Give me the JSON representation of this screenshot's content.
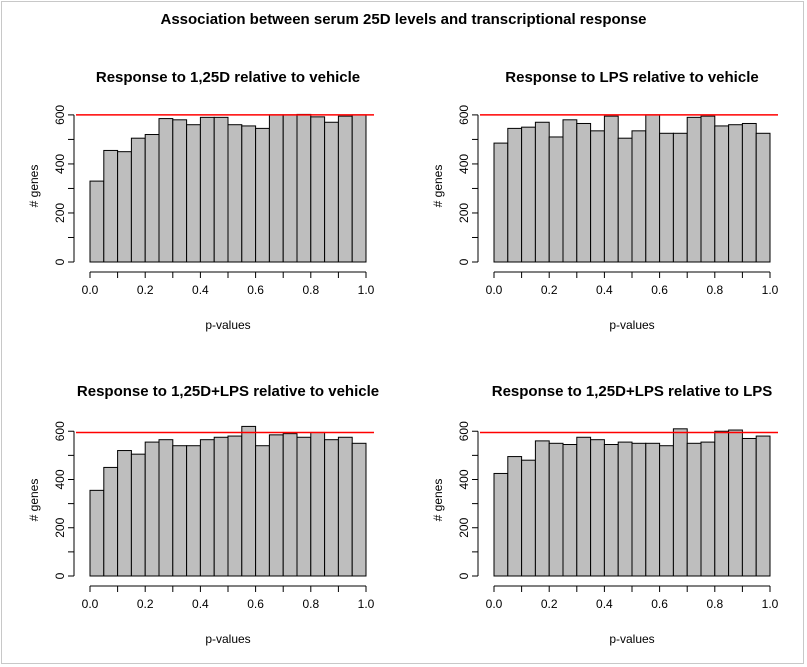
{
  "figure": {
    "title": "Association between serum 25D levels and transcriptional response"
  },
  "chart_data": [
    {
      "type": "bar",
      "title": "Response to 1,25D relative to vehicle",
      "xlabel": "p-values",
      "ylabel": "# genes",
      "bin_edges": [
        0.0,
        0.05,
        0.1,
        0.15,
        0.2,
        0.25,
        0.3,
        0.35,
        0.4,
        0.45,
        0.5,
        0.55,
        0.6,
        0.65,
        0.7,
        0.75,
        0.8,
        0.85,
        0.9,
        0.95,
        1.0
      ],
      "values": [
        330,
        455,
        450,
        505,
        520,
        585,
        580,
        560,
        590,
        590,
        560,
        555,
        545,
        600,
        600,
        602,
        592,
        570,
        595,
        600
      ],
      "reference_line": 600,
      "reference_color": "#ff0000",
      "bar_color": "#bebebe",
      "xlim": [
        0,
        1
      ],
      "ylim": [
        0,
        620
      ],
      "xticks": [
        "0.0",
        "0.2",
        "0.4",
        "0.6",
        "0.8",
        "1.0"
      ],
      "yticks": [
        "0",
        "200",
        "400",
        "600"
      ],
      "grid": false
    },
    {
      "type": "bar",
      "title": "Response to LPS relative to vehicle",
      "xlabel": "p-values",
      "ylabel": "# genes",
      "bin_edges": [
        0.0,
        0.05,
        0.1,
        0.15,
        0.2,
        0.25,
        0.3,
        0.35,
        0.4,
        0.45,
        0.5,
        0.55,
        0.6,
        0.65,
        0.7,
        0.75,
        0.8,
        0.85,
        0.9,
        0.95,
        1.0
      ],
      "values": [
        485,
        545,
        550,
        570,
        510,
        580,
        565,
        535,
        595,
        505,
        535,
        600,
        525,
        525,
        590,
        595,
        555,
        560,
        565,
        525
      ],
      "reference_line": 600,
      "reference_color": "#ff0000",
      "bar_color": "#bebebe",
      "xlim": [
        0,
        1
      ],
      "ylim": [
        0,
        620
      ],
      "xticks": [
        "0.0",
        "0.2",
        "0.4",
        "0.6",
        "0.8",
        "1.0"
      ],
      "yticks": [
        "0",
        "200",
        "400",
        "600"
      ],
      "grid": false
    },
    {
      "type": "bar",
      "title": "Response to 1,25D+LPS relative to vehicle",
      "xlabel": "p-values",
      "ylabel": "# genes",
      "bin_edges": [
        0.0,
        0.05,
        0.1,
        0.15,
        0.2,
        0.25,
        0.3,
        0.35,
        0.4,
        0.45,
        0.5,
        0.55,
        0.6,
        0.65,
        0.7,
        0.75,
        0.8,
        0.85,
        0.9,
        0.95,
        1.0
      ],
      "values": [
        355,
        450,
        520,
        505,
        555,
        565,
        540,
        540,
        565,
        575,
        580,
        620,
        540,
        585,
        590,
        575,
        595,
        565,
        575,
        550
      ],
      "reference_line": 595,
      "reference_color": "#ff0000",
      "bar_color": "#bebebe",
      "xlim": [
        0,
        1
      ],
      "ylim": [
        0,
        630
      ],
      "xticks": [
        "0.0",
        "0.2",
        "0.4",
        "0.6",
        "0.8",
        "1.0"
      ],
      "yticks": [
        "0",
        "200",
        "400",
        "600"
      ],
      "grid": false
    },
    {
      "type": "bar",
      "title": "Response to 1,25D+LPS relative to LPS",
      "xlabel": "p-values",
      "ylabel": "# genes",
      "bin_edges": [
        0.0,
        0.05,
        0.1,
        0.15,
        0.2,
        0.25,
        0.3,
        0.35,
        0.4,
        0.45,
        0.5,
        0.55,
        0.6,
        0.65,
        0.7,
        0.75,
        0.8,
        0.85,
        0.9,
        0.95,
        1.0
      ],
      "values": [
        425,
        495,
        480,
        560,
        550,
        545,
        575,
        565,
        545,
        555,
        550,
        550,
        540,
        610,
        550,
        555,
        600,
        605,
        570,
        580
      ],
      "reference_line": 595,
      "reference_color": "#ff0000",
      "bar_color": "#bebebe",
      "xlim": [
        0,
        1
      ],
      "ylim": [
        0,
        630
      ],
      "xticks": [
        "0.0",
        "0.2",
        "0.4",
        "0.6",
        "0.8",
        "1.0"
      ],
      "yticks": [
        "0",
        "200",
        "400",
        "600"
      ],
      "grid": false
    }
  ]
}
